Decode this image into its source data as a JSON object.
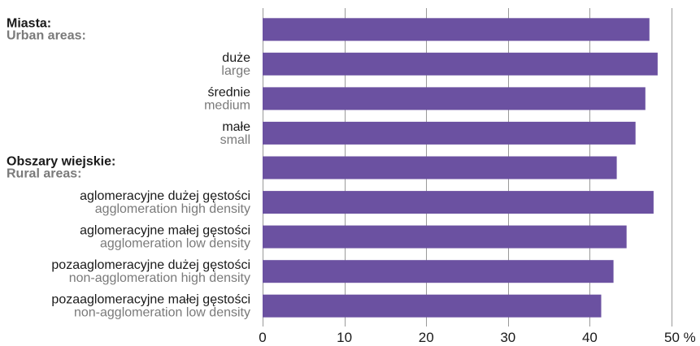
{
  "chart_data": {
    "type": "bar",
    "orientation": "horizontal",
    "categories": [
      {
        "pl": "Miasta:",
        "en": "Urban areas:",
        "header": true
      },
      {
        "pl": "duże",
        "en": "large",
        "header": false
      },
      {
        "pl": "średnie",
        "en": "medium",
        "header": false
      },
      {
        "pl": "małe",
        "en": "small",
        "header": false
      },
      {
        "pl": "Obszary wiejskie:",
        "en": "Rural areas:",
        "header": true
      },
      {
        "pl": "aglomeracyjne dużej gęstości",
        "en": "agglomeration high density",
        "header": false
      },
      {
        "pl": "aglomeracyjne małej gęstości",
        "en": "agglomeration low density",
        "header": false
      },
      {
        "pl": "pozaaglomeracyjne dużej gęstości",
        "en": "non-agglomeration high density",
        "header": false
      },
      {
        "pl": "pozaaglomeracyjne małej gęstości",
        "en": "non-agglomeration low density",
        "header": false
      }
    ],
    "values": [
      47.3,
      48.3,
      46.8,
      45.6,
      43.3,
      47.8,
      44.5,
      42.9,
      41.4
    ],
    "xlim": [
      0,
      50
    ],
    "xticks": [
      "0",
      "10",
      "20",
      "30",
      "40",
      "50 %"
    ],
    "grid": true,
    "bar_color": "#6b51a1"
  }
}
